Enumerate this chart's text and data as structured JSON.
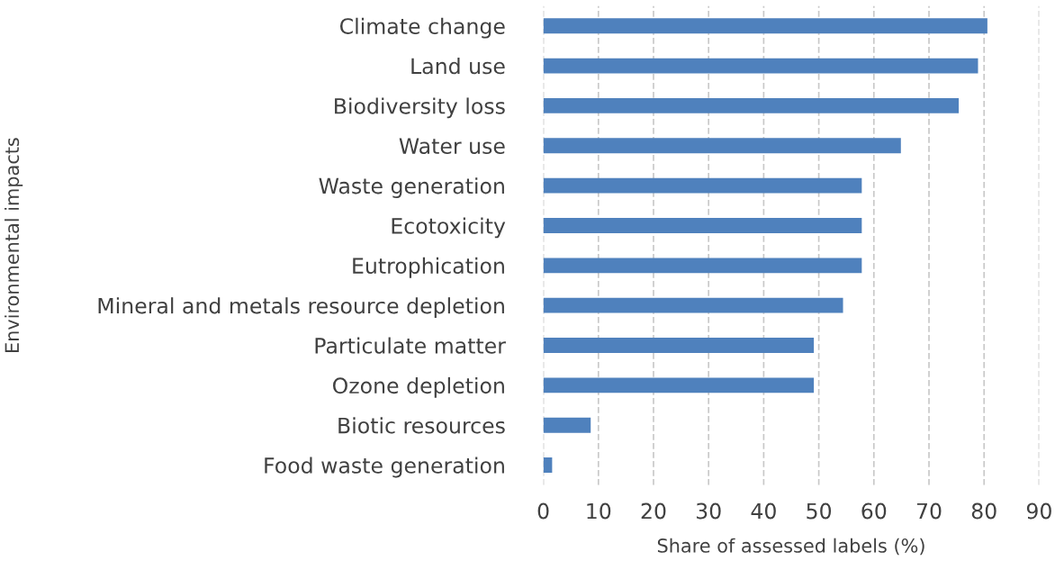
{
  "chart_data": {
    "type": "bar",
    "orientation": "horizontal",
    "xlabel": "Share of assessed labels (%)",
    "ylabel": "Environmental impacts",
    "categories": [
      "Climate change",
      "Land use",
      "Biodiversity loss",
      "Water use",
      "Waste generation",
      "Ecotoxicity",
      "Eutrophication",
      "Mineral and metals resource depletion",
      "Particulate matter",
      "Ozone depletion",
      "Biotic resources",
      "Food waste generation"
    ],
    "values": [
      80.6,
      78.9,
      75.4,
      64.9,
      57.8,
      57.8,
      57.8,
      54.4,
      49.1,
      49.1,
      8.6,
      1.6
    ],
    "color": "#4f81bd",
    "xlim": [
      0,
      90
    ],
    "xticks": [
      0,
      10,
      20,
      30,
      40,
      50,
      60,
      70,
      80,
      90
    ],
    "grid": "x"
  }
}
